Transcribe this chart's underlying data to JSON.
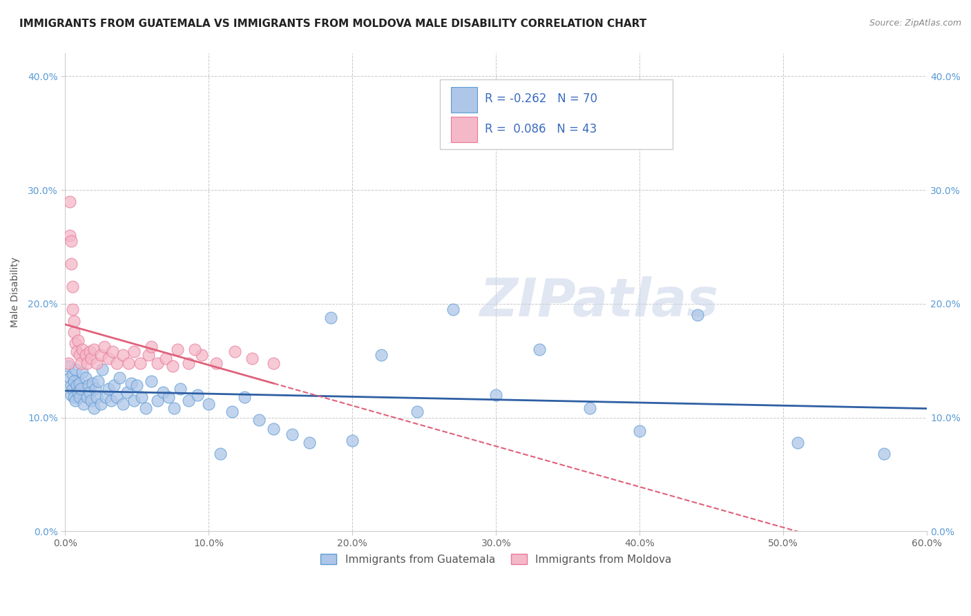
{
  "title": "IMMIGRANTS FROM GUATEMALA VS IMMIGRANTS FROM MOLDOVA MALE DISABILITY CORRELATION CHART",
  "source": "Source: ZipAtlas.com",
  "ylabel": "Male Disability",
  "xlim": [
    0.0,
    0.6
  ],
  "ylim": [
    0.0,
    0.42
  ],
  "xticks": [
    0.0,
    0.1,
    0.2,
    0.3,
    0.4,
    0.5,
    0.6
  ],
  "xticklabels": [
    "0.0%",
    "10.0%",
    "20.0%",
    "30.0%",
    "40.0%",
    "50.0%",
    "60.0%"
  ],
  "yticks": [
    0.0,
    0.1,
    0.2,
    0.3,
    0.4
  ],
  "yticklabels": [
    "0.0%",
    "10.0%",
    "20.0%",
    "30.0%",
    "40.0%"
  ],
  "guatemala_color": "#aec6e8",
  "guatemala_edge": "#5b9bd5",
  "moldova_color": "#f4b8c8",
  "moldova_edge": "#e8789a",
  "trend_guatemala_color": "#2e5fa3",
  "trend_moldova_color": "#e0607a",
  "watermark": "ZIPatlas",
  "legend_R_guatemala": "R = -0.262",
  "legend_N_guatemala": "N = 70",
  "legend_R_moldova": "R =  0.086",
  "legend_N_moldova": "N = 43",
  "background_color": "#ffffff",
  "grid_color": "#c8c8c8",
  "title_fontsize": 11,
  "axis_label_fontsize": 10,
  "tick_fontsize": 10,
  "legend_fontsize": 12
}
